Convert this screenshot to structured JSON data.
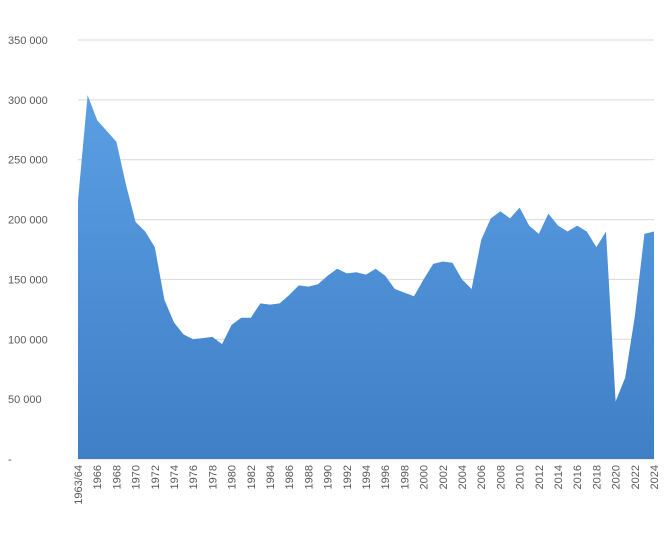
{
  "chart_data": {
    "type": "area",
    "categories": [
      "1963/64",
      null,
      "1966",
      null,
      "1968",
      null,
      "1970",
      null,
      "1972",
      null,
      "1974",
      null,
      "1976",
      null,
      "1978",
      null,
      "1980",
      null,
      "1982",
      null,
      "1984",
      null,
      "1986",
      null,
      "1988",
      null,
      "1990",
      null,
      "1992",
      null,
      "1994",
      null,
      "1996",
      null,
      "1998",
      null,
      "2000",
      null,
      "2002",
      null,
      "2004",
      null,
      "2006",
      null,
      "2008",
      null,
      "2010",
      null,
      "2012",
      null,
      "2014",
      null,
      "2016",
      null,
      "2018",
      null,
      "2020",
      null,
      "2022",
      null,
      "2024"
    ],
    "values": [
      216000,
      304000,
      283000,
      274000,
      265000,
      229000,
      198000,
      190000,
      177000,
      133000,
      114000,
      104000,
      100000,
      101000,
      102000,
      96000,
      112000,
      118000,
      118000,
      130000,
      129000,
      130000,
      137000,
      145000,
      144000,
      146000,
      153000,
      159000,
      155000,
      156000,
      154000,
      159000,
      153000,
      142000,
      139000,
      136000,
      150000,
      163000,
      165000,
      164000,
      150000,
      142000,
      183000,
      201000,
      207000,
      201000,
      210000,
      195000,
      188000,
      205000,
      195000,
      190000,
      195000,
      190000,
      177000,
      190000,
      48000,
      68000,
      119000,
      188000,
      190000
    ],
    "color": "#4a8ad4",
    "ylim": [
      0,
      350000
    ],
    "yticks": [
      {
        "value": 0,
        "label": "-"
      },
      {
        "value": 50000,
        "label": "50 000"
      },
      {
        "value": 100000,
        "label": "100 000"
      },
      {
        "value": 150000,
        "label": "150 000"
      },
      {
        "value": 200000,
        "label": "200 000"
      },
      {
        "value": 250000,
        "label": "250 000"
      },
      {
        "value": 300000,
        "label": "300 000"
      },
      {
        "value": 350000,
        "label": "350 000"
      }
    ],
    "grid": true
  }
}
